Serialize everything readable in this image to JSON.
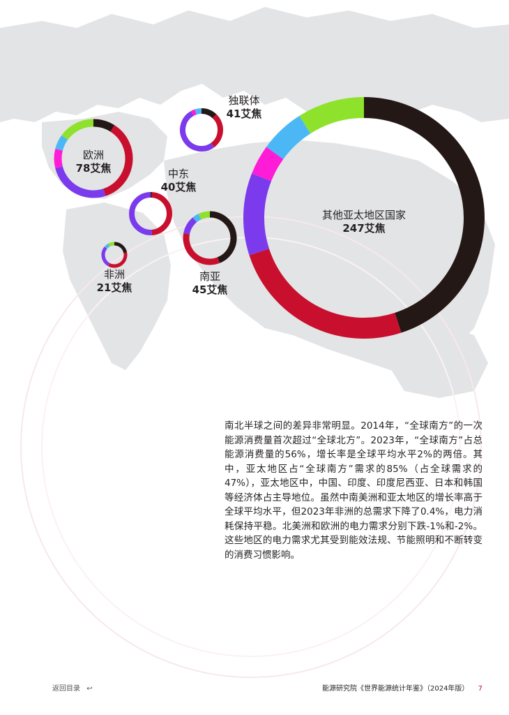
{
  "colors": {
    "black": "#231815",
    "crimson": "#c8102e",
    "purple": "#7c3aed",
    "magenta": "#ff1cd6",
    "skyblue": "#4bb8f5",
    "lime": "#8ee22b",
    "map": "#e3e4e6"
  },
  "regions": [
    {
      "id": "cis",
      "name": "独联体",
      "value": "41艾焦",
      "segments": [
        {
          "color": "black",
          "pct": 12
        },
        {
          "color": "crimson",
          "pct": 28
        },
        {
          "color": "purple",
          "pct": 52
        },
        {
          "color": "magenta",
          "pct": 3
        },
        {
          "color": "skyblue",
          "pct": 5
        }
      ]
    },
    {
      "id": "europe",
      "name": "欧洲",
      "value": "78艾焦",
      "segments": [
        {
          "color": "black",
          "pct": 9
        },
        {
          "color": "crimson",
          "pct": 36
        },
        {
          "color": "purple",
          "pct": 26
        },
        {
          "color": "magenta",
          "pct": 8
        },
        {
          "color": "skyblue",
          "pct": 6
        },
        {
          "color": "lime",
          "pct": 15
        }
      ]
    },
    {
      "id": "middle-east",
      "name": "中东",
      "value": "40艾焦",
      "segments": [
        {
          "color": "black",
          "pct": 1
        },
        {
          "color": "crimson",
          "pct": 48
        },
        {
          "color": "purple",
          "pct": 51
        }
      ]
    },
    {
      "id": "africa",
      "name": "非洲",
      "value": "21艾焦",
      "segments": [
        {
          "color": "black",
          "pct": 22
        },
        {
          "color": "crimson",
          "pct": 36
        },
        {
          "color": "purple",
          "pct": 28
        },
        {
          "color": "skyblue",
          "pct": 6
        },
        {
          "color": "lime",
          "pct": 8
        }
      ]
    },
    {
      "id": "south-asia",
      "name": "南亚",
      "value": "45艾焦",
      "segments": [
        {
          "color": "black",
          "pct": 44
        },
        {
          "color": "crimson",
          "pct": 34
        },
        {
          "color": "purple",
          "pct": 11
        },
        {
          "color": "skyblue",
          "pct": 4
        },
        {
          "color": "lime",
          "pct": 7
        }
      ]
    },
    {
      "id": "other-apac",
      "name": "其他亚太地区国家",
      "value": "247艾焦",
      "segments": [
        {
          "color": "black",
          "pct": 45
        },
        {
          "color": "crimson",
          "pct": 25
        },
        {
          "color": "purple",
          "pct": 11
        },
        {
          "color": "magenta",
          "pct": 4
        },
        {
          "color": "skyblue",
          "pct": 6
        },
        {
          "color": "lime",
          "pct": 9
        }
      ]
    }
  ],
  "body_text": "南北半球之间的差异非常明显。2014年，“全球南方”的一次能源消费量首次超过“全球北方”。2023年，“全球南方”占总能源消费量的56%，增长率是全球平均水平2%的两倍。其中，亚太地区占“全球南方”需求的85%（占全球需求的47%），亚太地区中，中国、印度、印度尼西亚、日本和韩国等经济体占主导地位。虽然中南美洲和亚太地区的增长率高于全球平均水平，但2023年非洲的总需求下降了0.4%，电力消耗保持平稳。北美洲和欧洲的电力需求分别下跌-1%和-2%。这些地区的电力需求尤其受到能效法规、节能照明和不断转变的消费习惯影响。",
  "footer": {
    "back_label": "返回目录",
    "back_icon": "return-arrow-icon",
    "publication": "能源研究院《世界能源统计年鉴》（2024年版）",
    "page": "7"
  }
}
